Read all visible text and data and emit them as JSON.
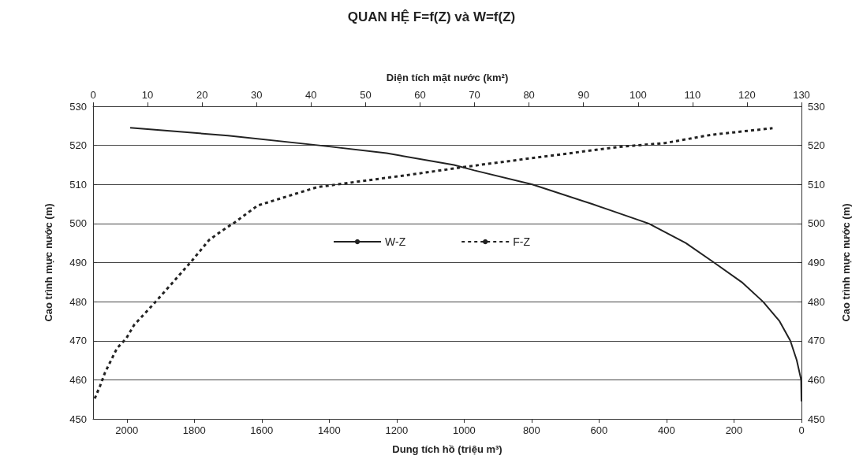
{
  "chart_data": {
    "type": "line",
    "title": "QUAN HỆ F=f(Z) và W=f(Z)",
    "xlabel": "Dung tích hồ (triệu m³)",
    "x2label": "Diện tích mặt nước (km²)",
    "ylabel": "Cao trình mực nước (m)",
    "y2label": "Cao trình mực nước (m)",
    "xlim": [
      2100,
      0
    ],
    "xticks": [
      2000,
      1800,
      1600,
      1400,
      1200,
      1000,
      800,
      600,
      400,
      200,
      0
    ],
    "x2lim": [
      0,
      130
    ],
    "x2ticks": [
      0,
      10,
      20,
      30,
      40,
      50,
      60,
      70,
      80,
      90,
      100,
      110,
      120,
      130
    ],
    "ylim": [
      450,
      530
    ],
    "yticks": [
      450,
      460,
      470,
      480,
      490,
      500,
      510,
      520,
      530
    ],
    "y2lim": [
      450,
      530
    ],
    "y2ticks": [
      450,
      460,
      470,
      480,
      490,
      500,
      510,
      520,
      530
    ],
    "grid": "y",
    "legend": "center",
    "marker": "none",
    "series": [
      {
        "name": "W-Z",
        "color": "#222222",
        "line_style": "solid",
        "x": [
          1990,
          1700,
          1430,
          1230,
          1030,
          970,
          798,
          621,
          453,
          343,
          259,
          177,
          114,
          65,
          33,
          14,
          1,
          0
        ],
        "values": [
          524.5,
          522.5,
          520,
          518,
          515,
          513.6,
          510,
          505,
          500,
          495,
          490,
          485,
          480,
          475,
          470,
          465,
          460,
          454.5
        ]
      },
      {
        "name": "F-Z",
        "color": "#222222",
        "line_style": "dashed",
        "axis": "x2",
        "x": [
          0.3,
          1.3,
          2.2,
          4.4,
          6.1,
          7.5,
          11.1,
          14.5,
          18.1,
          21.3,
          23.7,
          25.9,
          30.2,
          35.5,
          41.1,
          49.5,
          57.2,
          68.8,
          82.5,
          96.5,
          105,
          113.4,
          124.7
        ],
        "values": [
          455.2,
          458.5,
          461.9,
          468.1,
          470.6,
          474,
          479.4,
          484.7,
          490.4,
          495.8,
          498.2,
          500.2,
          504.6,
          506.9,
          509.3,
          510.9,
          512.3,
          514.6,
          517.1,
          519.6,
          520.6,
          522.7,
          524.4
        ]
      }
    ]
  }
}
